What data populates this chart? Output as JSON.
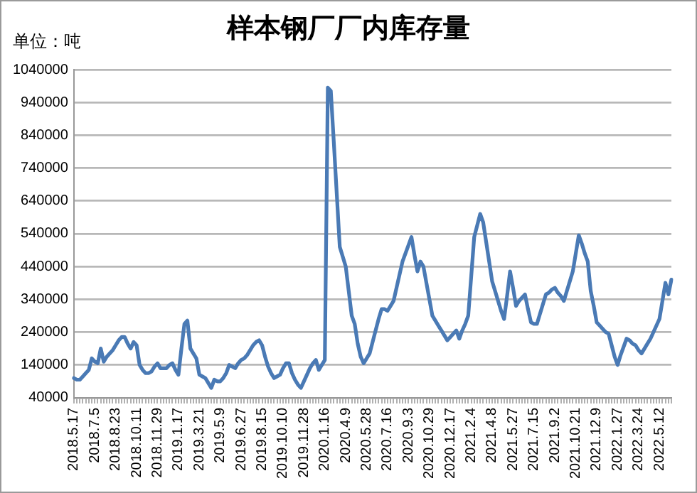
{
  "chart_data": {
    "type": "line",
    "title": "样本钢厂厂内库存量",
    "ylabel": "单位：吨",
    "categories": [
      "2018.5.17",
      null,
      null,
      null,
      null,
      null,
      null,
      "2018.7.5",
      null,
      null,
      null,
      null,
      null,
      null,
      "2018.8.23",
      null,
      null,
      null,
      null,
      null,
      null,
      "2018.10.11",
      null,
      null,
      null,
      null,
      null,
      null,
      "2018.11.29",
      null,
      null,
      null,
      null,
      null,
      null,
      "2019.1.17",
      null,
      null,
      null,
      null,
      null,
      null,
      "2019.3.21",
      null,
      null,
      null,
      null,
      null,
      null,
      "2019.5.9",
      null,
      null,
      null,
      null,
      null,
      null,
      "2019.6.27",
      null,
      null,
      null,
      null,
      null,
      null,
      "2019.8.15",
      null,
      null,
      null,
      null,
      null,
      null,
      "2019.10.10",
      null,
      null,
      null,
      null,
      null,
      null,
      "2019.11.28",
      null,
      null,
      null,
      null,
      null,
      null,
      "2020.1.16",
      null,
      null,
      null,
      null,
      null,
      null,
      "2020.4.9",
      null,
      null,
      null,
      null,
      null,
      null,
      "2020.5.28",
      null,
      null,
      null,
      null,
      null,
      null,
      "2020.7.16",
      null,
      null,
      null,
      null,
      null,
      null,
      "2020.9.3",
      null,
      null,
      null,
      null,
      null,
      null,
      "2020.10.29",
      null,
      null,
      null,
      null,
      null,
      null,
      "2020.12.17",
      null,
      null,
      null,
      null,
      null,
      null,
      "2021.2.4",
      null,
      null,
      null,
      null,
      null,
      null,
      "2021.4.8",
      null,
      null,
      null,
      null,
      null,
      null,
      "2021.5.27",
      null,
      null,
      null,
      null,
      null,
      null,
      "2021.7.15",
      null,
      null,
      null,
      null,
      null,
      null,
      "2021.9.2",
      null,
      null,
      null,
      null,
      null,
      null,
      "2021.10.21",
      null,
      null,
      null,
      null,
      null,
      null,
      "2021.12.9",
      null,
      null,
      null,
      null,
      null,
      null,
      "2022.1.27",
      null,
      null,
      null,
      null,
      null,
      null,
      "2022.3.24",
      null,
      null,
      null,
      null,
      null,
      null,
      "2022.5.12",
      null,
      null,
      null,
      null
    ],
    "series": [
      {
        "color": "#4a7ab5",
        "values": [
          100000,
          95000,
          95000,
          105000,
          115000,
          125000,
          160000,
          150000,
          145000,
          190000,
          150000,
          165000,
          175000,
          185000,
          200000,
          215000,
          225000,
          225000,
          205000,
          190000,
          210000,
          200000,
          140000,
          125000,
          115000,
          115000,
          120000,
          135000,
          145000,
          130000,
          130000,
          130000,
          140000,
          145000,
          125000,
          110000,
          190000,
          265000,
          275000,
          190000,
          175000,
          160000,
          110000,
          105000,
          100000,
          85000,
          70000,
          95000,
          90000,
          90000,
          100000,
          115000,
          140000,
          135000,
          130000,
          145000,
          155000,
          160000,
          170000,
          185000,
          200000,
          210000,
          215000,
          200000,
          165000,
          135000,
          115000,
          100000,
          105000,
          110000,
          130000,
          145000,
          145000,
          115000,
          95000,
          80000,
          70000,
          90000,
          110000,
          130000,
          145000,
          155000,
          125000,
          140000,
          155000,
          985000,
          975000,
          820000,
          660000,
          500000,
          470000,
          440000,
          365000,
          290000,
          265000,
          205000,
          165000,
          145000,
          160000,
          175000,
          210000,
          245000,
          280000,
          310000,
          310000,
          305000,
          320000,
          335000,
          375000,
          415000,
          455000,
          480000,
          505000,
          530000,
          475000,
          425000,
          455000,
          440000,
          390000,
          340000,
          290000,
          275000,
          260000,
          245000,
          230000,
          215000,
          225000,
          235000,
          245000,
          220000,
          245000,
          265000,
          290000,
          410000,
          530000,
          565000,
          600000,
          575000,
          515000,
          455000,
          395000,
          365000,
          335000,
          305000,
          280000,
          350000,
          425000,
          375000,
          320000,
          335000,
          345000,
          355000,
          310000,
          270000,
          265000,
          265000,
          295000,
          325000,
          355000,
          360000,
          370000,
          375000,
          360000,
          350000,
          335000,
          365000,
          395000,
          425000,
          480000,
          535000,
          510000,
          480000,
          455000,
          365000,
          320000,
          270000,
          260000,
          250000,
          240000,
          235000,
          200000,
          165000,
          140000,
          170000,
          195000,
          220000,
          215000,
          205000,
          200000,
          185000,
          175000,
          190000,
          205000,
          220000,
          240000,
          260000,
          280000,
          335000,
          390000,
          355000,
          400000
        ]
      }
    ],
    "ylim": [
      40000,
      1040000
    ],
    "yticks": [
      40000,
      140000,
      240000,
      340000,
      440000,
      540000,
      640000,
      740000,
      840000,
      940000,
      1040000
    ],
    "grid": "y",
    "legend": false,
    "marker": "none",
    "line_style": "solid"
  }
}
